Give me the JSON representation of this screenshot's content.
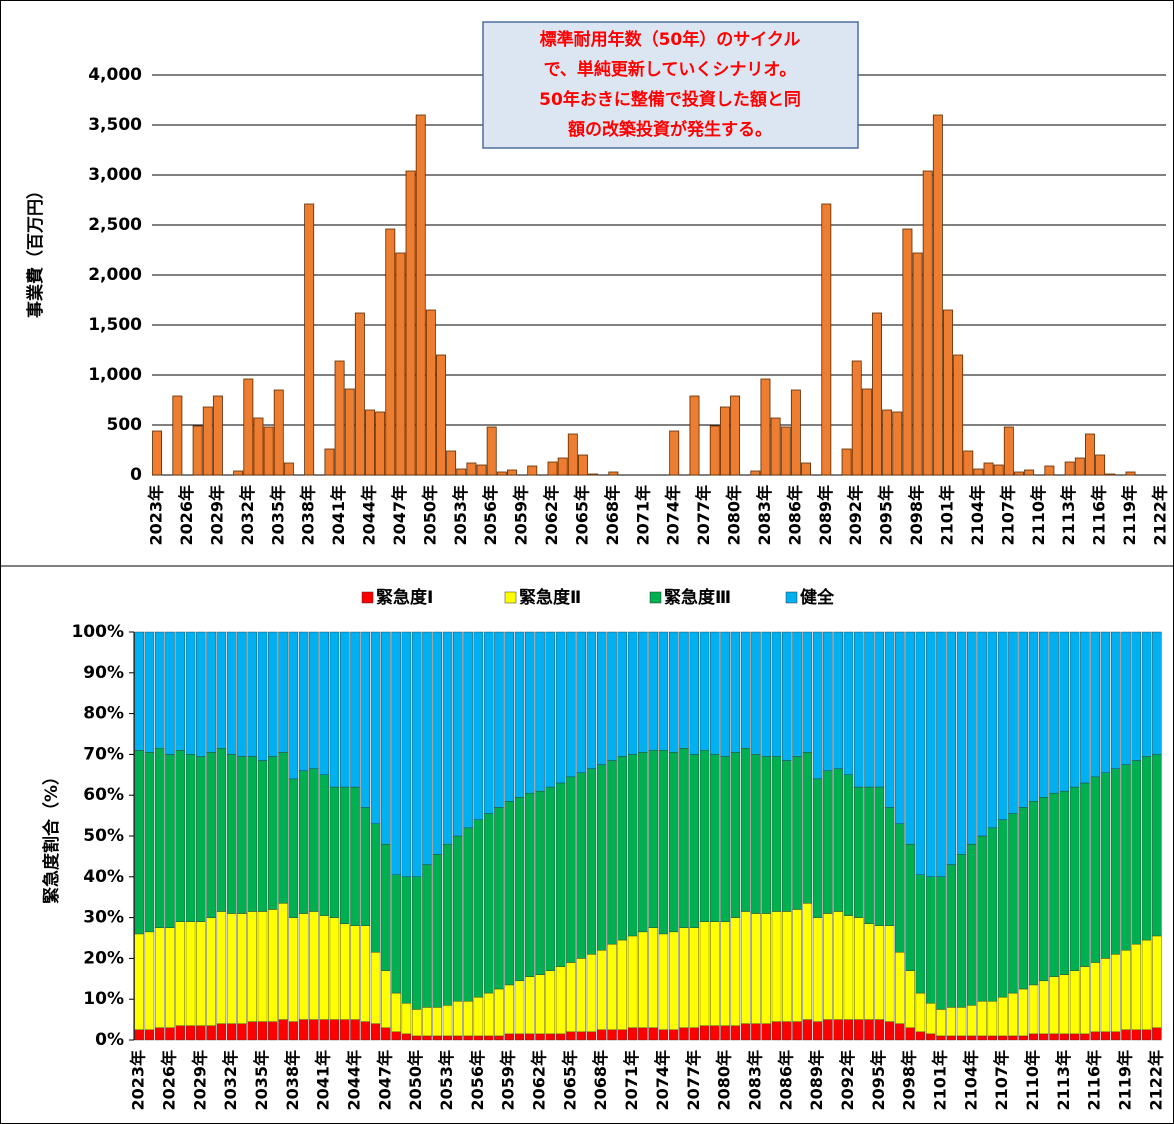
{
  "chart_data": [
    {
      "type": "bar",
      "annotation": [
        "標準耐用年数（50年）のサイクル",
        "で、単純更新していくシナリオ。",
        "50年おきに整備で投資した額と同",
        "額の改築投資が発生する。"
      ],
      "y_label": "事業費（百万円）",
      "color": "#ed7d31",
      "grid": true,
      "ylim": [
        0,
        4500
      ],
      "yticks": [
        0,
        500,
        {
          "value": 1000,
          "label": "1,000"
        },
        {
          "value": 1500,
          "label": "1,500"
        },
        {
          "value": 2000,
          "label": "2,000"
        },
        {
          "value": 2500,
          "label": "2,500"
        },
        {
          "value": 3000,
          "label": "3,000"
        },
        {
          "value": 3500,
          "label": "3,500"
        },
        {
          "value": 4000,
          "label": "4,000"
        }
      ],
      "categories": [
        "2023年",
        null,
        null,
        "2026年",
        null,
        null,
        "2029年",
        null,
        null,
        "2032年",
        null,
        null,
        "2035年",
        null,
        null,
        "2038年",
        null,
        null,
        "2041年",
        null,
        null,
        "2044年",
        null,
        null,
        "2047年",
        null,
        null,
        "2050年",
        null,
        null,
        "2053年",
        null,
        null,
        "2056年",
        null,
        null,
        "2059年",
        null,
        null,
        "2062年",
        null,
        null,
        "2065年",
        null,
        null,
        "2068年",
        null,
        null,
        "2071年",
        null,
        null,
        "2074年",
        null,
        null,
        "2077年",
        null,
        null,
        "2080年",
        null,
        null,
        "2083年",
        null,
        null,
        "2086年",
        null,
        null,
        "2089年",
        null,
        null,
        "2092年",
        null,
        null,
        "2095年",
        null,
        null,
        "2098年",
        null,
        null,
        "2101年",
        null,
        null,
        "2104年",
        null,
        null,
        "2107年",
        null,
        null,
        "2110年",
        null,
        null,
        "2113年",
        null,
        null,
        "2116年",
        null,
        null,
        "2119年",
        null,
        null,
        "2122年"
      ],
      "values": [
        440,
        0,
        790,
        0,
        490,
        680,
        790,
        0,
        40,
        960,
        570,
        480,
        850,
        120,
        0,
        2710,
        0,
        260,
        1140,
        860,
        1620,
        650,
        630,
        2460,
        2220,
        3040,
        3600,
        1650,
        1200,
        240,
        60,
        120,
        100,
        480,
        30,
        50,
        0,
        90,
        0,
        130,
        170,
        410,
        200,
        10,
        0,
        30,
        0,
        0,
        0,
        0,
        0,
        440,
        0,
        790,
        0,
        490,
        680,
        790,
        0,
        40,
        960,
        570,
        480,
        850,
        120,
        0,
        2710,
        0,
        260,
        1140,
        860,
        1620,
        650,
        630,
        2460,
        2220,
        3040,
        3600,
        1650,
        1200,
        240,
        60,
        120,
        100,
        480,
        30,
        50,
        0,
        90,
        0,
        130,
        170,
        410,
        200,
        10,
        0,
        30,
        0,
        0,
        0
      ]
    },
    {
      "type": "stacked_bar",
      "y_label": "緊急度割合（%）",
      "ylim": [
        0,
        100
      ],
      "yticks": [
        {
          "value": 0,
          "label": "0%"
        },
        {
          "value": 10,
          "label": "10%"
        },
        {
          "value": 20,
          "label": "20%"
        },
        {
          "value": 30,
          "label": "30%"
        },
        {
          "value": 40,
          "label": "40%"
        },
        {
          "value": 50,
          "label": "50%"
        },
        {
          "value": 60,
          "label": "60%"
        },
        {
          "value": 70,
          "label": "70%"
        },
        {
          "value": 80,
          "label": "80%"
        },
        {
          "value": 90,
          "label": "90%"
        },
        {
          "value": 100,
          "label": "100%"
        }
      ],
      "categories": [
        "2023年",
        null,
        null,
        "2026年",
        null,
        null,
        "2029年",
        null,
        null,
        "2032年",
        null,
        null,
        "2035年",
        null,
        null,
        "2038年",
        null,
        null,
        "2041年",
        null,
        null,
        "2044年",
        null,
        null,
        "2047年",
        null,
        null,
        "2050年",
        null,
        null,
        "2053年",
        null,
        null,
        "2056年",
        null,
        null,
        "2059年",
        null,
        null,
        "2062年",
        null,
        null,
        "2065年",
        null,
        null,
        "2068年",
        null,
        null,
        "2071年",
        null,
        null,
        "2074年",
        null,
        null,
        "2077年",
        null,
        null,
        "2080年",
        null,
        null,
        "2083年",
        null,
        null,
        "2086年",
        null,
        null,
        "2089年",
        null,
        null,
        "2092年",
        null,
        null,
        "2095年",
        null,
        null,
        "2098年",
        null,
        null,
        "2101年",
        null,
        null,
        "2104年",
        null,
        null,
        "2107年",
        null,
        null,
        "2110年",
        null,
        null,
        "2113年",
        null,
        null,
        "2116年",
        null,
        null,
        "2119年",
        null,
        null,
        "2122年"
      ],
      "series": [
        {
          "name": "緊急度Ⅰ",
          "color": "#ff0000",
          "values": [
            2.5,
            2.5,
            3,
            3,
            3.5,
            3.5,
            3.5,
            3.5,
            4,
            4,
            4,
            4.5,
            4.5,
            4.5,
            5,
            4.5,
            5,
            5,
            5,
            5,
            5,
            5,
            4.5,
            4,
            3,
            2,
            1.5,
            1,
            1,
            1,
            1,
            1,
            1,
            1,
            1,
            1,
            1.5,
            1.5,
            1.5,
            1.5,
            1.5,
            1.5,
            2,
            2,
            2,
            2.5,
            2.5,
            2.5,
            3,
            3,
            3,
            2.5,
            2.5,
            3,
            3,
            3.5,
            3.5,
            3.5,
            3.5,
            4,
            4,
            4,
            4.5,
            4.5,
            4.5,
            5,
            4.5,
            5,
            5,
            5,
            5,
            5,
            5,
            4.5,
            4,
            3,
            2,
            1.5,
            1,
            1,
            1,
            1,
            1,
            1,
            1,
            1,
            1,
            1.5,
            1.5,
            1.5,
            1.5,
            1.5,
            1.5,
            2,
            2,
            2,
            2.5,
            2.5,
            2.5,
            3
          ]
        },
        {
          "name": "緊急度Ⅱ",
          "color": "#ffff00",
          "values": [
            23.5,
            24,
            24.5,
            24.5,
            25.5,
            25.5,
            25.5,
            26.5,
            27.5,
            27,
            27,
            27,
            27,
            27.5,
            28.5,
            25.5,
            26,
            26.5,
            25.5,
            25,
            23.5,
            23,
            23.5,
            17.5,
            14,
            9.5,
            7.5,
            6.5,
            7,
            7,
            7.5,
            8.5,
            8.5,
            9.5,
            10.5,
            11.5,
            12,
            13,
            14,
            14.5,
            15.5,
            16.5,
            17,
            18,
            19,
            19.5,
            21,
            22,
            22.5,
            23.5,
            24.5,
            23.5,
            24,
            24.5,
            24.5,
            25.5,
            25.5,
            25.5,
            26.5,
            27.5,
            27,
            27,
            27,
            27,
            27.5,
            28.5,
            25.5,
            26,
            26.5,
            25.5,
            25,
            23.5,
            23,
            23.5,
            17.5,
            14,
            9.5,
            7.5,
            6.5,
            7,
            7,
            7.5,
            8.5,
            8.5,
            9.5,
            10.5,
            11.5,
            12,
            13,
            14,
            14.5,
            15.5,
            16.5,
            17,
            18,
            19,
            19.5,
            21,
            22,
            22.5
          ]
        },
        {
          "name": "緊急度Ⅲ",
          "color": "#00b050",
          "values": [
            45,
            44,
            44,
            42.5,
            42,
            41,
            40.5,
            40.5,
            40,
            39,
            38.5,
            38,
            37,
            37.5,
            37,
            34,
            35,
            35,
            34.5,
            32,
            33.5,
            34,
            29,
            31.5,
            31,
            29,
            31,
            32.5,
            35,
            37.5,
            39.5,
            40.5,
            42.5,
            43.5,
            44,
            44.5,
            45,
            45,
            45,
            45,
            45,
            45,
            45.5,
            45.5,
            45.5,
            45.5,
            45,
            45,
            44.5,
            44,
            43.5,
            45,
            44,
            44,
            42.5,
            42,
            41,
            40.5,
            40.5,
            40,
            39,
            38.5,
            38,
            37,
            37.5,
            37,
            34,
            35,
            35,
            34.5,
            32,
            33.5,
            34,
            29,
            31.5,
            31,
            29,
            31,
            32.5,
            35,
            37.5,
            39.5,
            40.5,
            42.5,
            43.5,
            44,
            44.5,
            45,
            45,
            45,
            45,
            45,
            45,
            45.5,
            45.5,
            45.5,
            45.5,
            45,
            45,
            44.5
          ]
        },
        {
          "name": "健全",
          "color": "#00b0f0",
          "values": [
            29,
            29.5,
            28.5,
            30,
            29,
            30,
            30.5,
            29.5,
            28.5,
            30,
            30.5,
            30.5,
            31.5,
            30.5,
            29.5,
            36,
            34,
            33.5,
            35,
            38,
            38,
            38,
            43,
            47,
            52,
            59.5,
            60,
            60,
            57,
            54.5,
            52,
            50,
            48,
            46,
            44.5,
            43,
            41.5,
            40.5,
            39.5,
            39,
            38,
            37,
            35.5,
            34.5,
            33.5,
            32.5,
            31.5,
            30.5,
            30,
            29.5,
            29,
            29,
            29.5,
            28.5,
            30,
            29,
            30,
            30.5,
            29.5,
            28.5,
            30,
            30.5,
            30.5,
            31.5,
            30.5,
            29.5,
            36,
            34,
            33.5,
            35,
            38,
            38,
            38,
            43,
            47,
            52,
            59.5,
            60,
            60,
            57,
            54.5,
            52,
            50,
            48,
            46,
            44.5,
            43,
            41.5,
            40.5,
            39.5,
            39,
            38,
            37,
            35.5,
            34.5,
            33.5,
            32.5,
            31.5,
            30.5,
            30
          ]
        }
      ]
    }
  ]
}
